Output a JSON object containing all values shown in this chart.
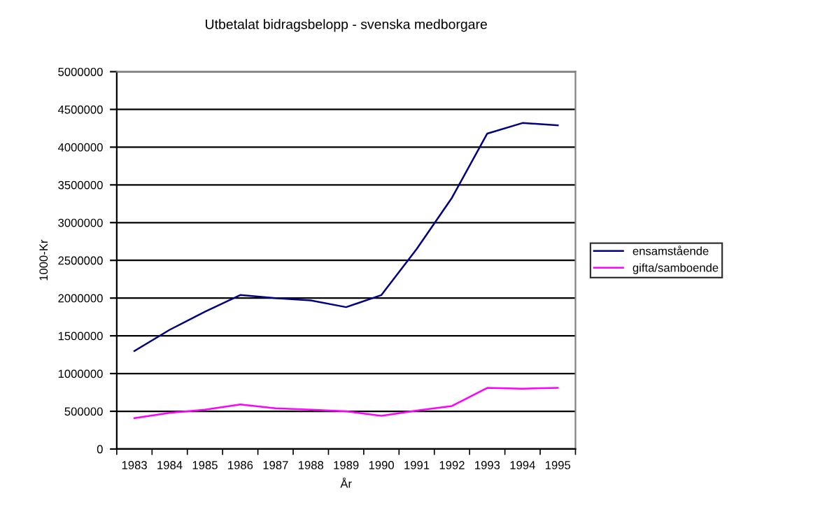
{
  "chart_data": {
    "type": "line",
    "title": "Utbetalat bidragsbelopp - svenska medborgare",
    "xlabel": "År",
    "ylabel": "1000-Kr",
    "categories": [
      "1983",
      "1984",
      "1985",
      "1986",
      "1987",
      "1988",
      "1989",
      "1990",
      "1991",
      "1992",
      "1993",
      "1994",
      "1995"
    ],
    "series": [
      {
        "name": "ensamstående",
        "color": "#000080",
        "values": [
          1300000,
          1580000,
          1820000,
          2040000,
          2000000,
          1970000,
          1880000,
          2040000,
          2650000,
          3330000,
          4180000,
          4320000,
          4290000
        ]
      },
      {
        "name": "gifta/samboende",
        "color": "#ff00ff",
        "values": [
          410000,
          480000,
          520000,
          590000,
          540000,
          520000,
          500000,
          440000,
          510000,
          570000,
          810000,
          800000,
          810000
        ]
      }
    ],
    "ylim": [
      0,
      5000000
    ],
    "yticks": [
      0,
      500000,
      1000000,
      1500000,
      2000000,
      2500000,
      3000000,
      3500000,
      4000000,
      4500000,
      5000000
    ],
    "grid": "y",
    "legend": "right",
    "marker": "none",
    "line_style": "solid"
  }
}
